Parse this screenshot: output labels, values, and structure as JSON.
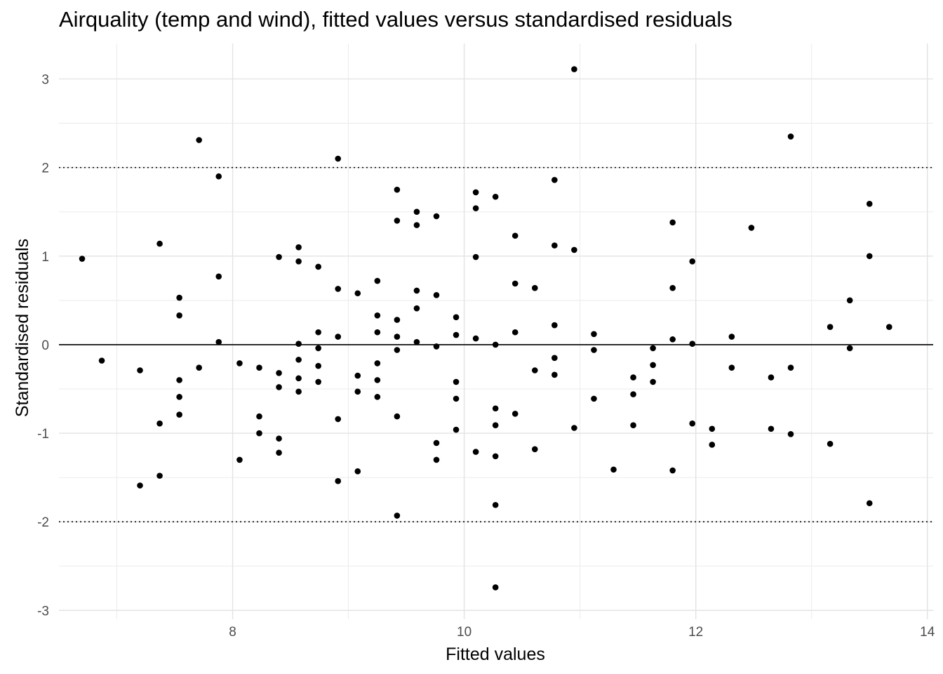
{
  "chart_data": {
    "type": "scatter",
    "title": "Airquality (temp and wind), fitted values versus standardised residuals",
    "xlabel": "Fitted values",
    "ylabel": "Standardised residuals",
    "xlim": [
      6.5,
      14.05
    ],
    "ylim": [
      -3.1,
      3.4
    ],
    "x_ticks": [
      8,
      10,
      12,
      14
    ],
    "y_ticks": [
      -3,
      -2,
      -1,
      0,
      1,
      2,
      3
    ],
    "x_tick_labels": [
      "8",
      "10",
      "12",
      "14"
    ],
    "y_tick_labels": [
      "-3",
      "-2",
      "-1",
      "0",
      "1",
      "2",
      "3"
    ],
    "grid": true,
    "reference_lines": [
      {
        "y": 0,
        "style": "solid"
      },
      {
        "y": 2,
        "style": "dotted"
      },
      {
        "y": -2,
        "style": "dotted"
      }
    ],
    "point_color": "#000000",
    "points": [
      [
        6.7,
        0.97
      ],
      [
        6.87,
        -0.18
      ],
      [
        7.2,
        -0.29
      ],
      [
        7.2,
        -1.59
      ],
      [
        7.37,
        1.14
      ],
      [
        7.37,
        -0.89
      ],
      [
        7.37,
        -1.48
      ],
      [
        7.54,
        0.53
      ],
      [
        7.54,
        0.33
      ],
      [
        7.54,
        -0.4
      ],
      [
        7.54,
        -0.59
      ],
      [
        7.54,
        -0.79
      ],
      [
        7.71,
        2.31
      ],
      [
        7.71,
        -0.26
      ],
      [
        7.88,
        1.9
      ],
      [
        7.88,
        0.77
      ],
      [
        7.88,
        0.03
      ],
      [
        8.06,
        -0.21
      ],
      [
        8.06,
        -1.3
      ],
      [
        8.23,
        -0.26
      ],
      [
        8.23,
        -0.81
      ],
      [
        8.23,
        -1.0
      ],
      [
        8.4,
        0.99
      ],
      [
        8.4,
        -0.32
      ],
      [
        8.4,
        -0.48
      ],
      [
        8.4,
        -1.06
      ],
      [
        8.4,
        -1.22
      ],
      [
        8.57,
        1.1
      ],
      [
        8.57,
        0.94
      ],
      [
        8.57,
        0.01
      ],
      [
        8.57,
        -0.17
      ],
      [
        8.57,
        -0.38
      ],
      [
        8.57,
        -0.53
      ],
      [
        8.74,
        0.88
      ],
      [
        8.74,
        0.14
      ],
      [
        8.74,
        -0.04
      ],
      [
        8.74,
        -0.24
      ],
      [
        8.74,
        -0.42
      ],
      [
        8.91,
        2.1
      ],
      [
        8.91,
        0.63
      ],
      [
        8.91,
        0.09
      ],
      [
        8.91,
        -0.84
      ],
      [
        8.91,
        -1.54
      ],
      [
        9.08,
        0.58
      ],
      [
        9.08,
        -0.35
      ],
      [
        9.08,
        -0.53
      ],
      [
        9.08,
        -1.43
      ],
      [
        9.25,
        0.72
      ],
      [
        9.25,
        0.33
      ],
      [
        9.25,
        0.14
      ],
      [
        9.25,
        -0.21
      ],
      [
        9.25,
        -0.4
      ],
      [
        9.25,
        -0.59
      ],
      [
        9.42,
        1.75
      ],
      [
        9.42,
        1.4
      ],
      [
        9.42,
        0.28
      ],
      [
        9.42,
        0.09
      ],
      [
        9.42,
        -0.06
      ],
      [
        9.42,
        -0.81
      ],
      [
        9.42,
        -1.93
      ],
      [
        9.59,
        1.5
      ],
      [
        9.59,
        1.35
      ],
      [
        9.59,
        0.61
      ],
      [
        9.59,
        0.41
      ],
      [
        9.59,
        0.03
      ],
      [
        9.76,
        1.45
      ],
      [
        9.76,
        0.56
      ],
      [
        9.76,
        -0.02
      ],
      [
        9.76,
        -1.11
      ],
      [
        9.76,
        -1.3
      ],
      [
        9.93,
        0.31
      ],
      [
        9.93,
        0.11
      ],
      [
        9.93,
        -0.42
      ],
      [
        9.93,
        -0.61
      ],
      [
        9.93,
        -0.96
      ],
      [
        10.1,
        1.72
      ],
      [
        10.1,
        1.54
      ],
      [
        10.1,
        0.99
      ],
      [
        10.1,
        0.07
      ],
      [
        10.1,
        -1.21
      ],
      [
        10.27,
        1.67
      ],
      [
        10.27,
        0.0
      ],
      [
        10.27,
        -0.72
      ],
      [
        10.27,
        -0.91
      ],
      [
        10.27,
        -1.26
      ],
      [
        10.27,
        -1.81
      ],
      [
        10.27,
        -2.74
      ],
      [
        10.44,
        1.23
      ],
      [
        10.44,
        0.69
      ],
      [
        10.44,
        0.14
      ],
      [
        10.44,
        -0.78
      ],
      [
        10.61,
        0.64
      ],
      [
        10.61,
        -0.29
      ],
      [
        10.61,
        -1.18
      ],
      [
        10.78,
        1.86
      ],
      [
        10.78,
        1.12
      ],
      [
        10.78,
        0.22
      ],
      [
        10.78,
        -0.15
      ],
      [
        10.78,
        -0.34
      ],
      [
        10.95,
        3.11
      ],
      [
        10.95,
        1.07
      ],
      [
        10.95,
        -0.94
      ],
      [
        11.12,
        0.12
      ],
      [
        11.12,
        -0.06
      ],
      [
        11.12,
        -0.61
      ],
      [
        11.29,
        -1.41
      ],
      [
        11.46,
        -0.37
      ],
      [
        11.46,
        -0.56
      ],
      [
        11.46,
        -0.91
      ],
      [
        11.63,
        -0.04
      ],
      [
        11.63,
        -0.23
      ],
      [
        11.63,
        -0.42
      ],
      [
        11.8,
        1.38
      ],
      [
        11.8,
        0.64
      ],
      [
        11.8,
        0.06
      ],
      [
        11.8,
        -1.42
      ],
      [
        11.97,
        0.94
      ],
      [
        11.97,
        0.01
      ],
      [
        11.97,
        -0.89
      ],
      [
        12.14,
        -0.95
      ],
      [
        12.14,
        -1.13
      ],
      [
        12.31,
        0.09
      ],
      [
        12.31,
        -0.26
      ],
      [
        12.48,
        1.32
      ],
      [
        12.65,
        -0.37
      ],
      [
        12.65,
        -0.95
      ],
      [
        12.82,
        2.35
      ],
      [
        12.82,
        -0.26
      ],
      [
        12.82,
        -1.01
      ],
      [
        13.16,
        0.2
      ],
      [
        13.16,
        -1.12
      ],
      [
        13.33,
        0.5
      ],
      [
        13.33,
        -0.04
      ],
      [
        13.5,
        1.59
      ],
      [
        13.5,
        1.0
      ],
      [
        13.5,
        -1.79
      ],
      [
        13.67,
        0.2
      ]
    ]
  }
}
